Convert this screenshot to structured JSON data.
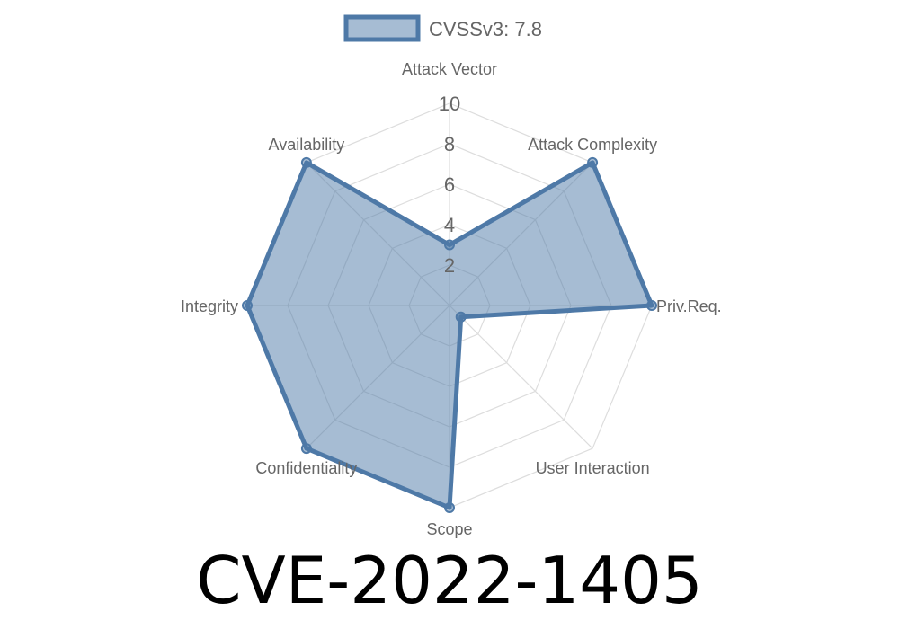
{
  "chart_data": {
    "type": "radar",
    "title": "CVE-2022-1405",
    "axes": [
      "Attack Vector",
      "Attack Complexity",
      "Priv.Req.",
      "User Interaction",
      "Scope",
      "Confidentiality",
      "Integrity",
      "Availability"
    ],
    "series": [
      {
        "name": "CVSSv3: 7.8",
        "values": [
          3,
          10,
          10,
          0.8,
          10,
          10,
          10,
          10
        ]
      }
    ],
    "rlim": [
      0,
      10
    ],
    "ticks": [
      "2",
      "4",
      "6",
      "8",
      "10"
    ],
    "grid": true,
    "legend": "top",
    "colors": {
      "stroke": "#4e79a7",
      "fill": "rgba(78,121,167,0.5)",
      "grid": "#dddddd"
    }
  }
}
